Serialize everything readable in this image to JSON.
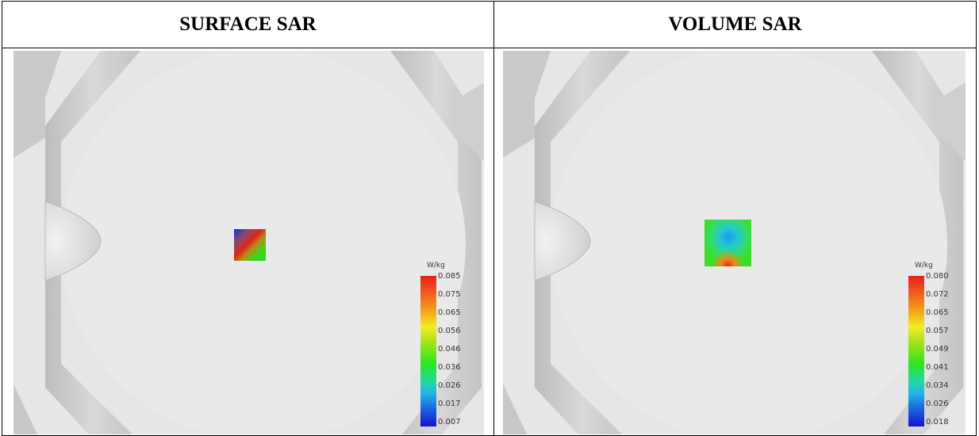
{
  "headers": {
    "left": "SURFACE SAR",
    "right": "VOLUME SAR"
  },
  "panels": [
    {
      "unit": "W/kg",
      "ticks": [
        "0.085",
        "0.075",
        "0.065",
        "0.056",
        "0.046",
        "0.036",
        "0.026",
        "0.017",
        "0.007"
      ]
    },
    {
      "unit": "W/kg",
      "ticks": [
        "0.080",
        "0.072",
        "0.065",
        "0.057",
        "0.049",
        "0.041",
        "0.034",
        "0.026",
        "0.018"
      ]
    }
  ]
}
